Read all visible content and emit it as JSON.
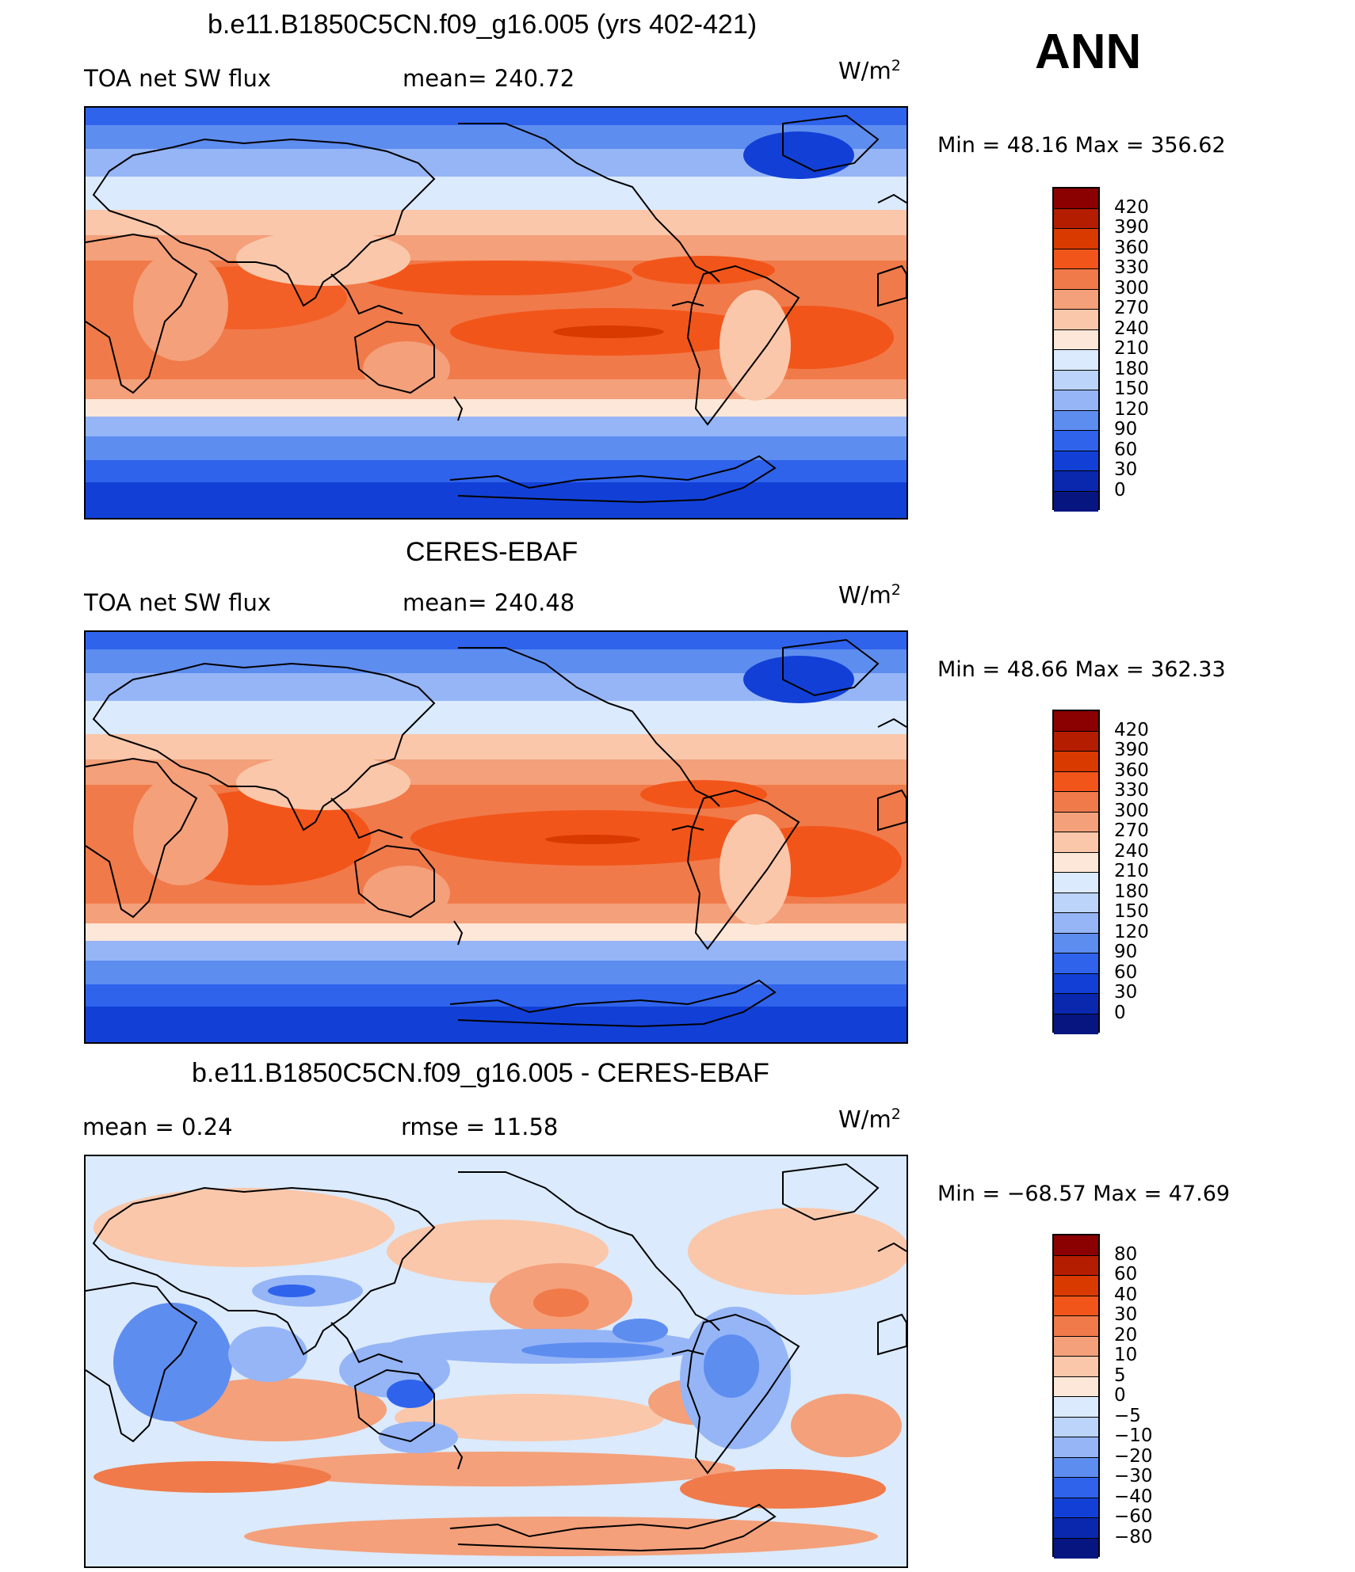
{
  "season": "ANN",
  "panels": [
    {
      "title": "b.e11.B1850C5CN.f09_g16.005 (yrs 402-421)",
      "left_label": "TOA net SW flux",
      "center_label": "mean=  240.72",
      "units": "W/m",
      "units_sup": "2",
      "minmax": "Min  =    48.16  Max  =  356.62",
      "levels": [
        "420",
        "390",
        "360",
        "330",
        "300",
        "270",
        "240",
        "210",
        "180",
        "150",
        "120",
        "90",
        "60",
        "30",
        "0"
      ],
      "colors": [
        "#8b0000",
        "#b51d00",
        "#d93a00",
        "#f2551a",
        "#f07a4a",
        "#f4a07a",
        "#fac7aa",
        "#fde7d8",
        "#dbeafc",
        "#bcd4fa",
        "#95b5f6",
        "#5e8df0",
        "#2f63ec",
        "#1240d6",
        "#0a28ae",
        "#06157f"
      ]
    },
    {
      "title": "CERES-EBAF",
      "left_label": "TOA net SW flux",
      "center_label": "mean=  240.48",
      "units": "W/m",
      "units_sup": "2",
      "minmax": "Min  =    48.66  Max  =  362.33",
      "levels": [
        "420",
        "390",
        "360",
        "330",
        "300",
        "270",
        "240",
        "210",
        "180",
        "150",
        "120",
        "90",
        "60",
        "30",
        "0"
      ],
      "colors": [
        "#8b0000",
        "#b51d00",
        "#d93a00",
        "#f2551a",
        "#f07a4a",
        "#f4a07a",
        "#fac7aa",
        "#fde7d8",
        "#dbeafc",
        "#bcd4fa",
        "#95b5f6",
        "#5e8df0",
        "#2f63ec",
        "#1240d6",
        "#0a28ae",
        "#06157f"
      ]
    },
    {
      "title": "b.e11.B1850C5CN.f09_g16.005 - CERES-EBAF",
      "left_label": "mean  =     0.24",
      "center_label": "rmse  =    11.58",
      "units": "W/m",
      "units_sup": "2",
      "minmax": "Min  = −68.57  Max  =    47.69",
      "levels": [
        "80",
        "60",
        "40",
        "30",
        "20",
        "10",
        "5",
        "0",
        "−5",
        "−10",
        "−20",
        "−30",
        "−40",
        "−60",
        "−80"
      ],
      "colors": [
        "#8b0000",
        "#b51d00",
        "#d93a00",
        "#f2551a",
        "#f07a4a",
        "#f4a07a",
        "#fac7aa",
        "#fde7d8",
        "#dbeafc",
        "#bcd4fa",
        "#95b5f6",
        "#5e8df0",
        "#2f63ec",
        "#1240d6",
        "#0a28ae",
        "#06157f"
      ]
    }
  ]
}
